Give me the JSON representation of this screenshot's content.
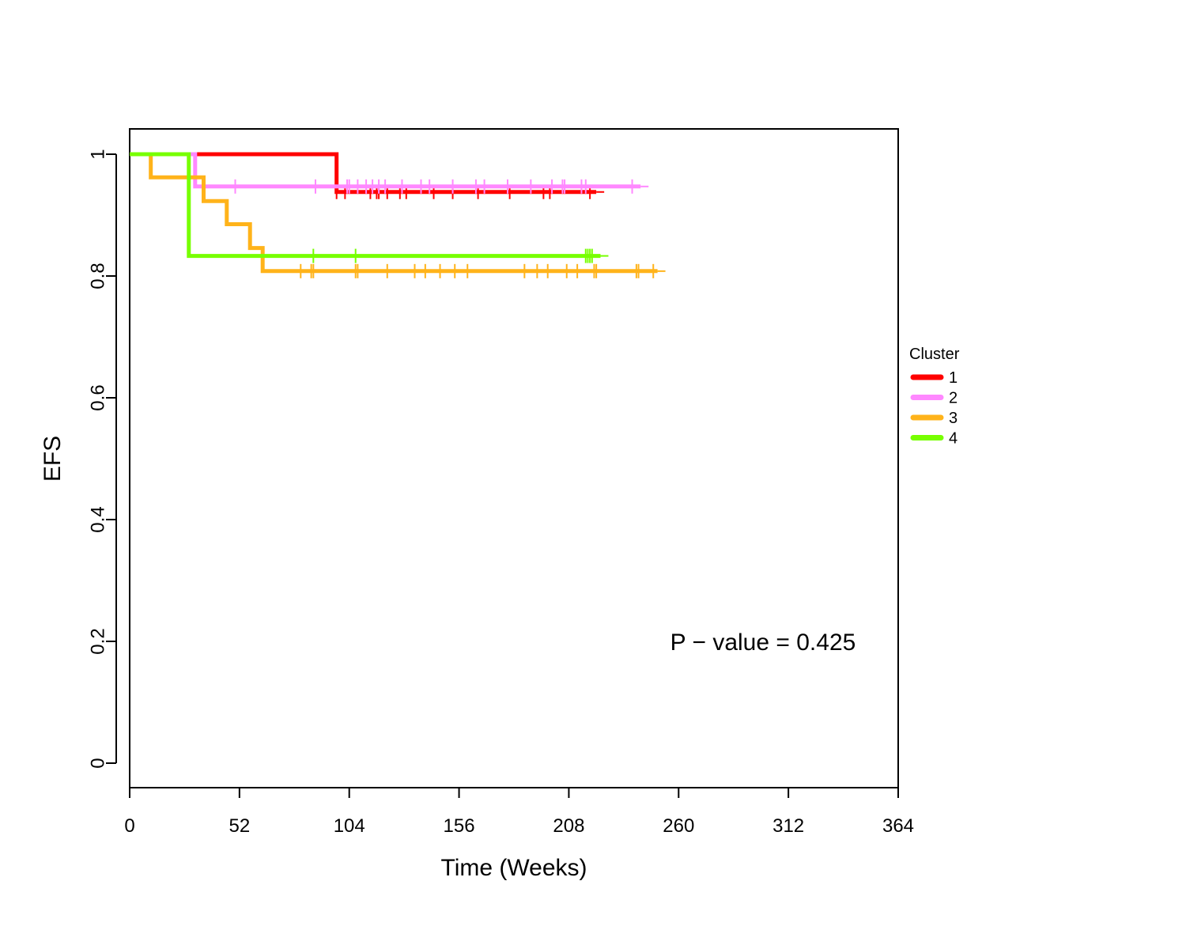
{
  "chart_data": {
    "type": "line",
    "subtype": "kaplan-meier",
    "title": "",
    "xlabel": "Time (Weeks)",
    "ylabel": "EFS",
    "xlim": [
      0,
      364
    ],
    "ylim": [
      0,
      1
    ],
    "xticks": [
      0,
      52,
      104,
      156,
      208,
      260,
      312,
      364
    ],
    "xtick_labels": [
      "0",
      "52",
      "104",
      "156",
      "208",
      "260",
      "312",
      "364"
    ],
    "yticks": [
      0,
      0.2,
      0.4,
      0.6,
      0.8,
      1
    ],
    "ytick_labels": [
      "0",
      "0.2",
      "0.4",
      "0.6",
      "0.8",
      "1"
    ],
    "grid": false,
    "legend": {
      "title": "Cluster",
      "position": "right"
    },
    "annotation": "P − value = 0.425",
    "series": [
      {
        "name": "1",
        "color": "#FF0000",
        "steps": [
          [
            0,
            1.0
          ],
          [
            98,
            1.0
          ],
          [
            98,
            0.938
          ],
          [
            221,
            0.938
          ]
        ],
        "censor_times": [
          98,
          102,
          114,
          117,
          118,
          122,
          128,
          131,
          144,
          153,
          165,
          180,
          196,
          199,
          218
        ]
      },
      {
        "name": "2",
        "color": "#FF88FF",
        "steps": [
          [
            0,
            1.0
          ],
          [
            31,
            1.0
          ],
          [
            31,
            0.947
          ],
          [
            242,
            0.947
          ]
        ],
        "censor_times": [
          50,
          88,
          103,
          104,
          108,
          112,
          115,
          118,
          121,
          129,
          138,
          142,
          153,
          164,
          168,
          179,
          190,
          200,
          205,
          206,
          214,
          216,
          238
        ]
      },
      {
        "name": "3",
        "color": "#FFB31A",
        "steps": [
          [
            0,
            1.0
          ],
          [
            10,
            1.0
          ],
          [
            10,
            0.962
          ],
          [
            35,
            0.962
          ],
          [
            35,
            0.923
          ],
          [
            46,
            0.923
          ],
          [
            46,
            0.885
          ],
          [
            57,
            0.885
          ],
          [
            57,
            0.846
          ],
          [
            63,
            0.846
          ],
          [
            63,
            0.808
          ],
          [
            250,
            0.808
          ]
        ],
        "censor_times": [
          81,
          86,
          87,
          107,
          108,
          122,
          135,
          140,
          147,
          154,
          160,
          187,
          193,
          198,
          207,
          212,
          220,
          221,
          240,
          241,
          248
        ]
      },
      {
        "name": "4",
        "color": "#77FF00",
        "steps": [
          [
            0,
            1.0
          ],
          [
            28,
            1.0
          ],
          [
            28,
            0.833
          ],
          [
            223,
            0.833
          ]
        ],
        "censor_times": [
          87,
          107,
          216,
          217,
          218,
          219
        ]
      }
    ]
  }
}
